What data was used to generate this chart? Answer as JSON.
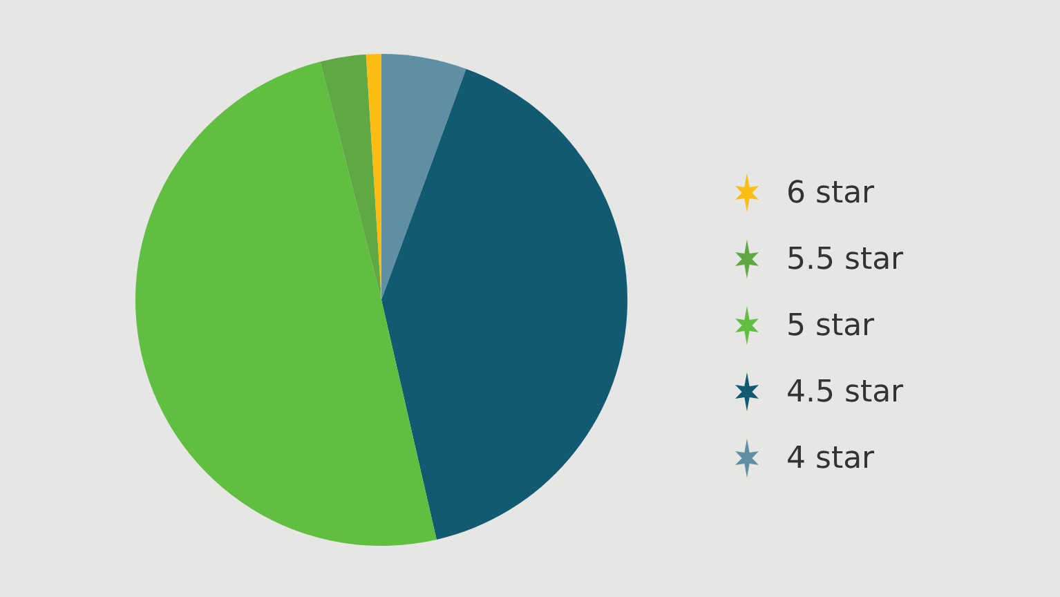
{
  "chart_data": {
    "type": "pie",
    "categories": [
      "4 star",
      "4.5 star",
      "5 star",
      "5.5 star",
      "6 star"
    ],
    "values": [
      5.6,
      40.8,
      49.6,
      3.0,
      1.0
    ],
    "colors": [
      "#5e8fa3",
      "#125a72",
      "#60bf40",
      "#5fa843",
      "#fbbd14"
    ],
    "legend": "right"
  }
}
